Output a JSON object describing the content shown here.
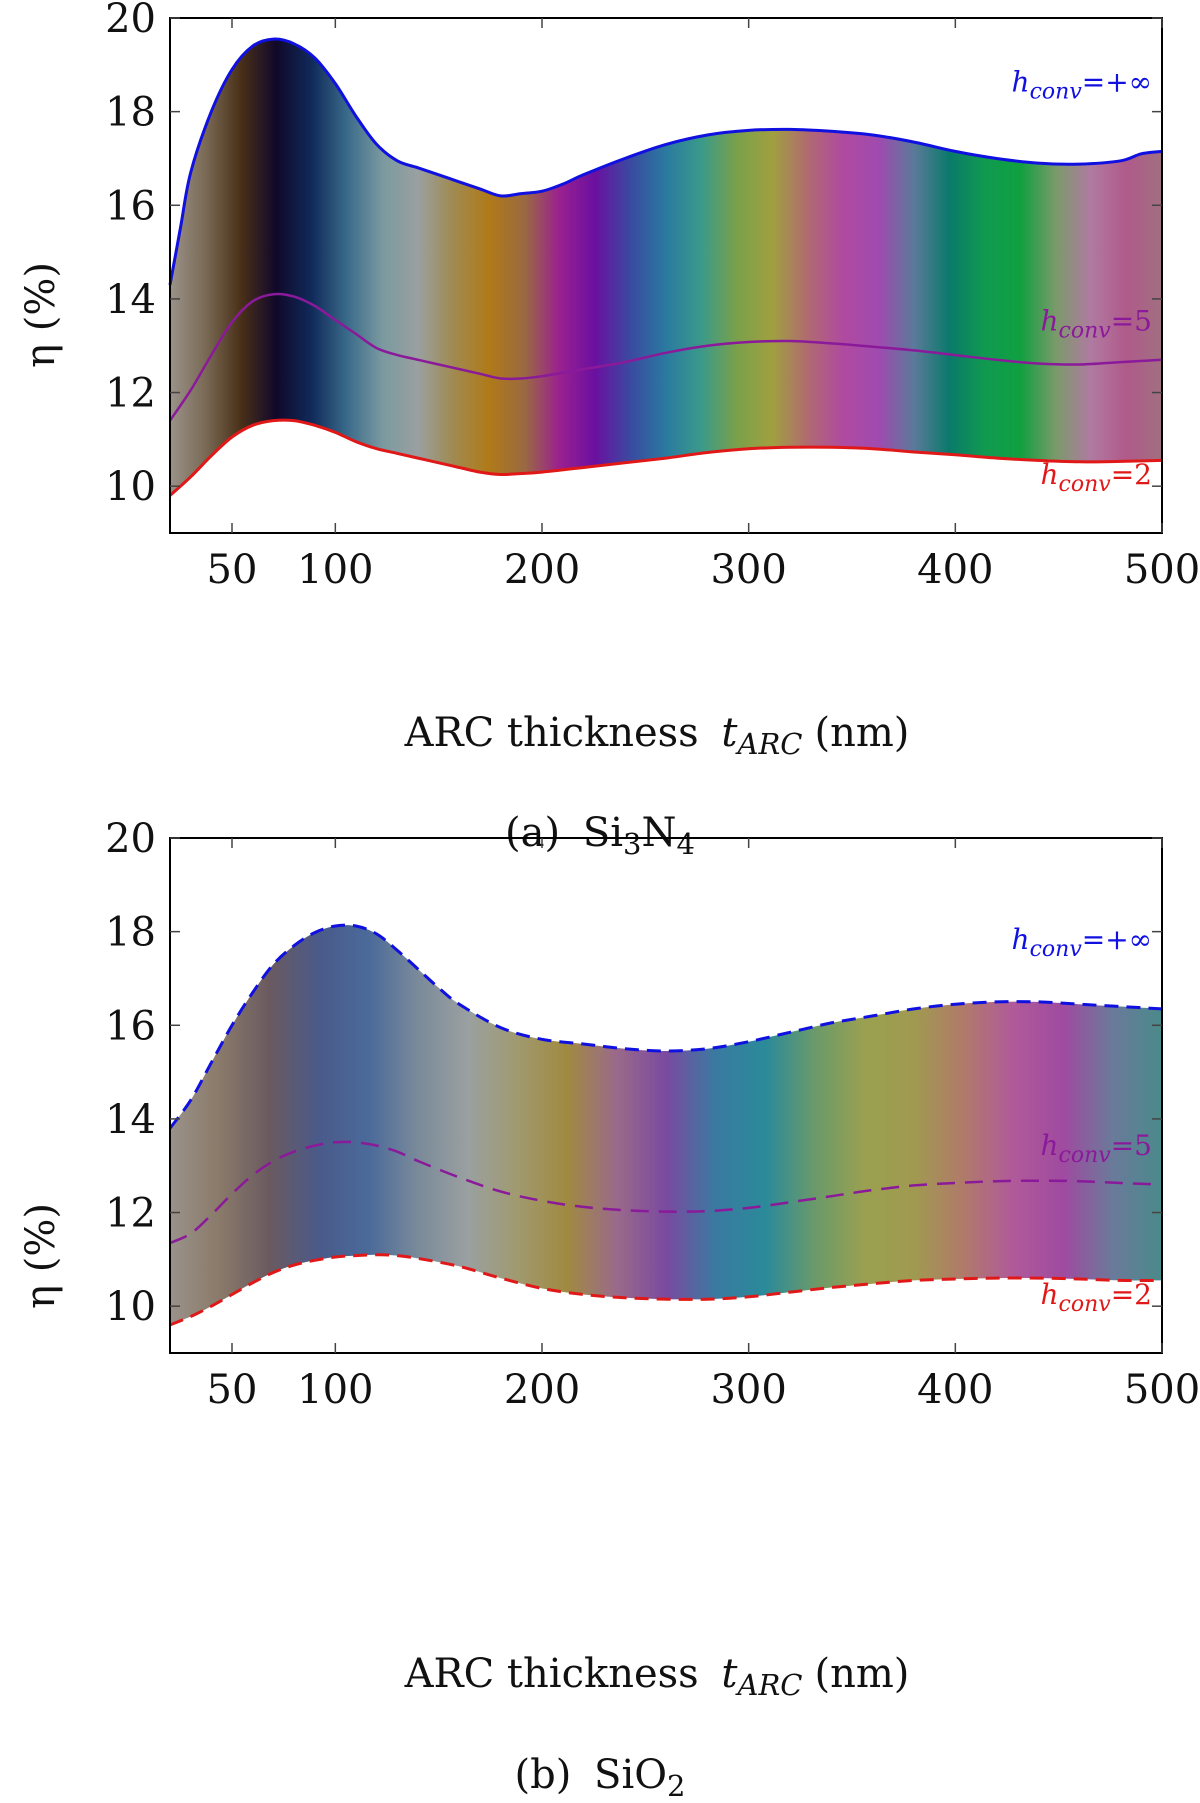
{
  "chart_data": [
    {
      "type": "area",
      "caption": "(a) Si3N4",
      "caption_parts": {
        "prefix": "(a)",
        "mat1": "Si",
        "sub1": "3",
        "mat2": "N",
        "sub2": "4"
      },
      "xlabel_parts": {
        "prefix": "ARC thickness",
        "var": "t",
        "sub": "ARC",
        "unit": "(nm)"
      },
      "ylabel": "η (%)",
      "xlim": [
        20,
        500
      ],
      "ylim": [
        9,
        20
      ],
      "xticks": [
        50,
        100,
        200,
        300,
        400,
        500
      ],
      "yticks": [
        10,
        12,
        14,
        16,
        18,
        20
      ],
      "line_style": "solid",
      "series": [
        {
          "name": "hconv=+∞",
          "label_var": "h",
          "label_sub": "conv",
          "label_val": "=+∞",
          "color": "#1010e0",
          "x": [
            20,
            25,
            30,
            40,
            50,
            60,
            70,
            80,
            90,
            100,
            110,
            120,
            130,
            140,
            150,
            160,
            170,
            180,
            190,
            200,
            210,
            220,
            240,
            260,
            280,
            300,
            320,
            340,
            360,
            380,
            400,
            420,
            440,
            460,
            480,
            490,
            500
          ],
          "y": [
            14.3,
            15.5,
            16.7,
            18.0,
            18.9,
            19.4,
            19.55,
            19.45,
            19.15,
            18.6,
            17.9,
            17.3,
            16.95,
            16.8,
            16.65,
            16.5,
            16.35,
            16.2,
            16.25,
            16.3,
            16.45,
            16.65,
            17.0,
            17.3,
            17.5,
            17.6,
            17.62,
            17.58,
            17.5,
            17.35,
            17.15,
            17.0,
            16.9,
            16.88,
            16.95,
            17.1,
            17.15
          ]
        },
        {
          "name": "hconv=5",
          "label_var": "h",
          "label_sub": "conv",
          "label_val": "=5",
          "color": "#8a1a9a",
          "x": [
            20,
            30,
            40,
            50,
            60,
            70,
            80,
            90,
            100,
            110,
            120,
            130,
            140,
            150,
            160,
            170,
            180,
            190,
            200,
            220,
            240,
            260,
            280,
            300,
            320,
            340,
            360,
            380,
            400,
            420,
            440,
            460,
            480,
            500
          ],
          "y": [
            11.4,
            12.05,
            12.8,
            13.5,
            13.95,
            14.1,
            14.05,
            13.85,
            13.55,
            13.25,
            12.95,
            12.8,
            12.7,
            12.6,
            12.5,
            12.4,
            12.3,
            12.3,
            12.35,
            12.5,
            12.65,
            12.85,
            13.0,
            13.08,
            13.1,
            13.05,
            12.98,
            12.9,
            12.8,
            12.7,
            12.62,
            12.6,
            12.65,
            12.7
          ]
        },
        {
          "name": "hconv=2",
          "label_var": "h",
          "label_sub": "conv",
          "label_val": "=2",
          "color": "#e01818",
          "x": [
            20,
            30,
            40,
            50,
            60,
            70,
            80,
            90,
            100,
            110,
            120,
            130,
            140,
            150,
            160,
            170,
            180,
            190,
            200,
            220,
            240,
            260,
            280,
            300,
            320,
            340,
            360,
            380,
            400,
            420,
            440,
            460,
            480,
            500
          ],
          "y": [
            9.8,
            10.2,
            10.65,
            11.05,
            11.3,
            11.4,
            11.4,
            11.3,
            11.15,
            10.95,
            10.8,
            10.7,
            10.6,
            10.5,
            10.4,
            10.3,
            10.25,
            10.27,
            10.3,
            10.4,
            10.5,
            10.6,
            10.72,
            10.8,
            10.83,
            10.83,
            10.8,
            10.73,
            10.67,
            10.6,
            10.55,
            10.52,
            10.53,
            10.55
          ]
        }
      ],
      "gradient_colors": [
        "#9a928a",
        "#7a6a55",
        "#4a3018",
        "#10082a",
        "#102a5a",
        "#3a6a8a",
        "#7a9aa0",
        "#9aa0a0",
        "#a08a50",
        "#b07a18",
        "#9a6a40",
        "#9a2090",
        "#6a10a0",
        "#3a4aa0",
        "#2a7aa0",
        "#3a9a8a",
        "#7aa04a",
        "#a0a040",
        "#b06a70",
        "#b04aa0",
        "#a04ab0",
        "#5a7a9a",
        "#0a7a6a",
        "#109a50",
        "#10a040",
        "#7a9a6a",
        "#b07aa0",
        "#b05a8a",
        "#a07080"
      ]
    },
    {
      "type": "area",
      "caption": "(b) SiO2",
      "caption_parts": {
        "prefix": "(b)",
        "mat1": "SiO",
        "sub1": "2"
      },
      "xlabel_parts": {
        "prefix": "ARC thickness",
        "var": "t",
        "sub": "ARC",
        "unit": "(nm)"
      },
      "ylabel": "η (%)",
      "xlim": [
        20,
        500
      ],
      "ylim": [
        9,
        20
      ],
      "xticks": [
        50,
        100,
        200,
        300,
        400,
        500
      ],
      "yticks": [
        10,
        12,
        14,
        16,
        18,
        20
      ],
      "line_style": "dashed",
      "series": [
        {
          "name": "hconv=+∞",
          "label_var": "h",
          "label_sub": "conv",
          "label_val": "=+∞",
          "color": "#1010e0",
          "x": [
            20,
            30,
            40,
            50,
            60,
            70,
            80,
            90,
            100,
            110,
            120,
            130,
            140,
            150,
            160,
            180,
            200,
            220,
            240,
            260,
            280,
            300,
            320,
            340,
            360,
            380,
            400,
            420,
            440,
            460,
            480,
            500
          ],
          "y": [
            13.8,
            14.4,
            15.2,
            16.0,
            16.7,
            17.3,
            17.7,
            17.98,
            18.12,
            18.12,
            17.95,
            17.6,
            17.2,
            16.8,
            16.45,
            15.95,
            15.7,
            15.6,
            15.5,
            15.45,
            15.5,
            15.65,
            15.85,
            16.05,
            16.2,
            16.35,
            16.45,
            16.5,
            16.5,
            16.45,
            16.4,
            16.35
          ]
        },
        {
          "name": "hconv=5",
          "label_var": "h",
          "label_sub": "conv",
          "label_val": "=5",
          "color": "#8a1a9a",
          "x": [
            20,
            30,
            40,
            50,
            60,
            70,
            80,
            90,
            100,
            110,
            120,
            130,
            140,
            160,
            180,
            200,
            220,
            240,
            260,
            280,
            300,
            320,
            340,
            360,
            380,
            400,
            420,
            440,
            460,
            480,
            500
          ],
          "y": [
            11.35,
            11.55,
            11.95,
            12.4,
            12.8,
            13.1,
            13.3,
            13.43,
            13.5,
            13.5,
            13.43,
            13.3,
            13.1,
            12.75,
            12.45,
            12.25,
            12.12,
            12.05,
            12.02,
            12.03,
            12.1,
            12.22,
            12.35,
            12.48,
            12.58,
            12.63,
            12.67,
            12.68,
            12.67,
            12.63,
            12.6
          ]
        },
        {
          "name": "hconv=2",
          "label_var": "h",
          "label_sub": "conv",
          "label_val": "=2",
          "color": "#e01818",
          "x": [
            20,
            30,
            40,
            50,
            60,
            70,
            80,
            90,
            100,
            110,
            120,
            130,
            140,
            160,
            180,
            200,
            220,
            240,
            260,
            280,
            300,
            320,
            340,
            360,
            380,
            400,
            420,
            440,
            460,
            480,
            500
          ],
          "y": [
            9.6,
            9.78,
            10.0,
            10.25,
            10.5,
            10.72,
            10.88,
            10.98,
            11.05,
            11.08,
            11.1,
            11.08,
            11.02,
            10.85,
            10.6,
            10.38,
            10.25,
            10.18,
            10.15,
            10.15,
            10.2,
            10.3,
            10.4,
            10.48,
            10.55,
            10.58,
            10.6,
            10.6,
            10.58,
            10.55,
            10.55
          ]
        }
      ],
      "gradient_colors": [
        "#9a928a",
        "#8a7a6a",
        "#6a5a60",
        "#4a5a8a",
        "#4a6a9a",
        "#7a8a9a",
        "#9aa0a0",
        "#a09a70",
        "#a08a40",
        "#9a6a8a",
        "#7a4aa0",
        "#3a7aa0",
        "#2a8a9a",
        "#6a9a6a",
        "#9aa050",
        "#a09a50",
        "#b07a6a",
        "#b05a9a",
        "#a04aa0",
        "#6a7a9a",
        "#4a8a8a"
      ]
    }
  ]
}
